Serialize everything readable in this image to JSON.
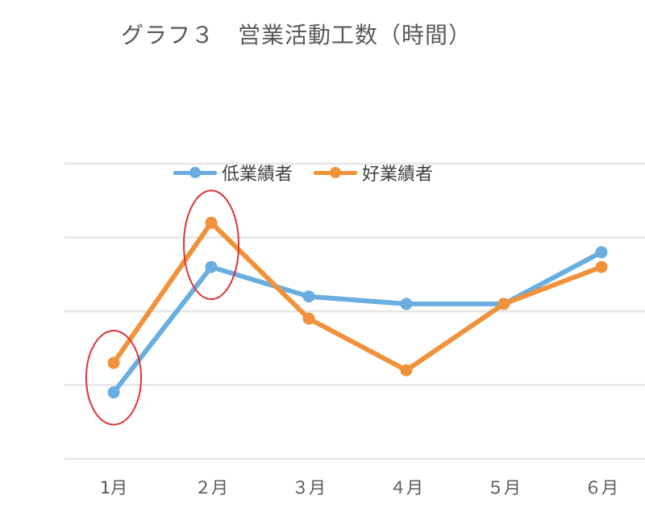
{
  "chart_data": {
    "type": "line",
    "title": "グラフ３　営業活動工数（時間）",
    "categories": [
      "1月",
      "２月",
      "３月",
      "４月",
      "５月",
      "６月"
    ],
    "series": [
      {
        "name": "低業績者",
        "color": "#6aaee0",
        "values": [
          0.9,
          2.6,
          2.2,
          2.1,
          2.1,
          2.8
        ]
      },
      {
        "name": "好業績者",
        "color": "#f0923b",
        "values": [
          1.3,
          3.2,
          1.9,
          1.2,
          2.1,
          2.6
        ]
      }
    ],
    "ylim": [
      0,
      4
    ],
    "grid": true,
    "legend_position": "top",
    "y_tick_labels_shown": false,
    "highlight_color": "#e03232",
    "highlights": [
      {
        "category_index": 0
      },
      {
        "category_index": 1
      }
    ]
  }
}
